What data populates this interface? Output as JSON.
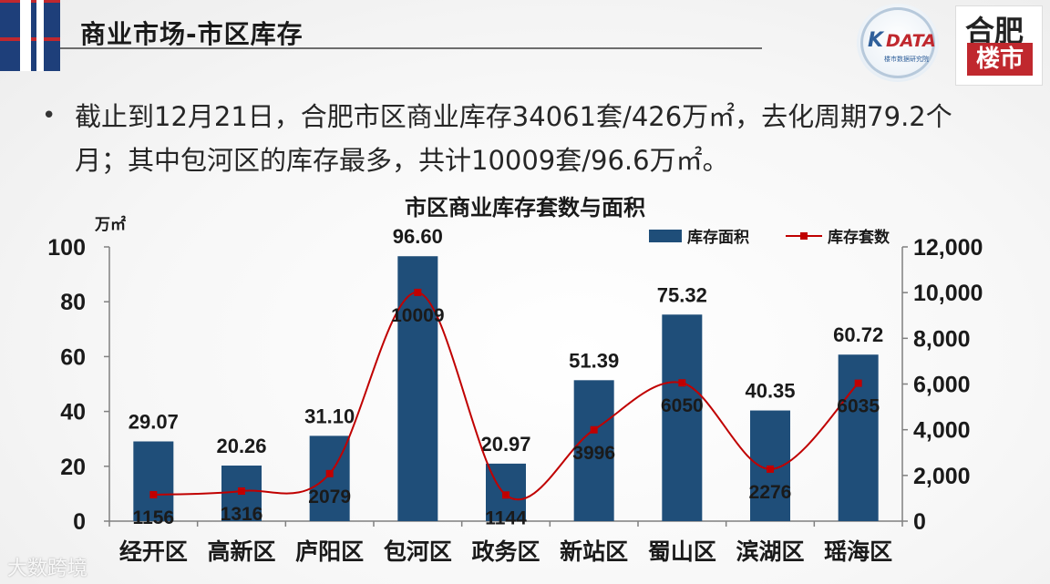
{
  "slide": {
    "title": "商业市场-市区库存",
    "bullet": "截止到12月21日，合肥市区商业库存34061套/426万㎡，去化周期79.2个月；其中包河区的库存最多，共计10009套/96.6万㎡。",
    "logo_kdata": {
      "mark": "K",
      "word": "DATA",
      "subtitle": "楼市数据研究院"
    },
    "logo_hefei": {
      "top": "合肥",
      "bottom": "楼市"
    },
    "watermark": "大数跨境"
  },
  "colors": {
    "bar": "#1f4e79",
    "line": "#c00000",
    "accent_red": "#c0282e",
    "accent_blue": "#1e3f7a"
  },
  "chart_data": {
    "type": "bar",
    "title": "市区商业库存套数与面积",
    "ylabel": "万㎡",
    "categories": [
      "经开区",
      "高新区",
      "庐阳区",
      "包河区",
      "政务区",
      "新站区",
      "蜀山区",
      "滨湖区",
      "瑶海区"
    ],
    "series": [
      {
        "name": "库存面积",
        "type": "bar",
        "axis": "left",
        "values": [
          29.07,
          20.26,
          31.1,
          96.6,
          20.97,
          51.39,
          75.32,
          40.35,
          60.72
        ],
        "labels": [
          "29.07",
          "20.26",
          "31.10",
          "96.60",
          "20.97",
          "51.39",
          "75.32",
          "40.35",
          "60.72"
        ]
      },
      {
        "name": "库存套数",
        "type": "line",
        "axis": "right",
        "smooth": true,
        "values": [
          1156,
          1316,
          2079,
          10009,
          1144,
          3996,
          6050,
          2276,
          6035
        ],
        "labels": [
          "1156",
          "1316",
          "2079",
          "10009",
          "1144",
          "3996",
          "6050",
          "2276",
          "6035"
        ]
      }
    ],
    "ylim_left": [
      0,
      100
    ],
    "yticks_left": [
      "0",
      "20",
      "40",
      "60",
      "80",
      "100"
    ],
    "ylim_right": [
      0,
      12000
    ],
    "yticks_right": [
      "0",
      "2,000",
      "4,000",
      "6,000",
      "8,000",
      "10,000",
      "12,000"
    ],
    "legend_position": "top-right",
    "grid": false
  }
}
